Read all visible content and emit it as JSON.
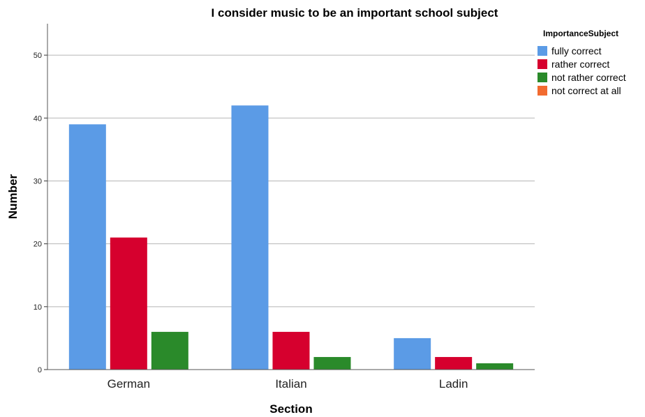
{
  "chart_data": {
    "type": "bar",
    "title": "I consider music to be an important school subject",
    "xlabel": "Section",
    "ylabel": "Number",
    "categories": [
      "German",
      "Italian",
      "Ladin"
    ],
    "series": [
      {
        "name": "fully correct",
        "color": "#5b9be6",
        "values": [
          39,
          42,
          5
        ]
      },
      {
        "name": "rather correct",
        "color": "#d6002e",
        "values": [
          21,
          6,
          2
        ]
      },
      {
        "name": "not rather correct",
        "color": "#2a8a2a",
        "values": [
          6,
          2,
          1
        ]
      },
      {
        "name": "not correct at all",
        "color": "#f26b30",
        "values": [
          0,
          0,
          0
        ]
      }
    ],
    "yticks": [
      0,
      10,
      20,
      30,
      40,
      50
    ],
    "ylim": [
      0,
      55
    ],
    "grid": true,
    "legend_title": "ImportanceSubject",
    "legend_position": "top-right"
  }
}
